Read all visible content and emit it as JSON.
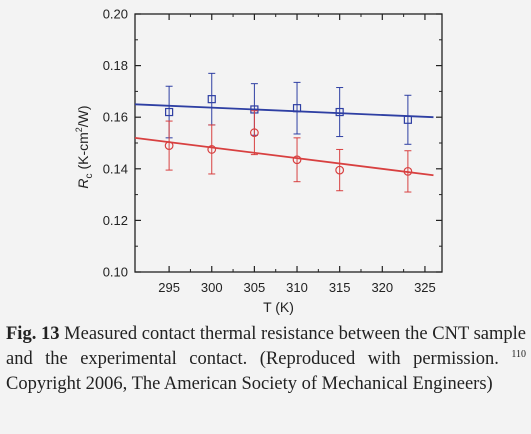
{
  "chart_data": {
    "type": "scatter",
    "xlabel": "T (K)",
    "ylabel_main": "R",
    "ylabel_sub": "c",
    "ylabel_unit": " (K-cm",
    "ylabel_sup": "2",
    "ylabel_tail": "/W)",
    "xlim": [
      291,
      327
    ],
    "ylim": [
      0.1,
      0.2
    ],
    "xticks": [
      295,
      300,
      305,
      310,
      315,
      320,
      325
    ],
    "yticks": [
      "0.10",
      "0.12",
      "0.14",
      "0.16",
      "0.18",
      "0.20"
    ],
    "grid": false,
    "series": [
      {
        "marker": "square",
        "color": "#2e3fa3",
        "x": [
          295,
          300,
          305,
          310,
          315,
          323
        ],
        "y": [
          0.162,
          0.167,
          0.163,
          0.1635,
          0.162,
          0.159
        ],
        "err": [
          0.01,
          0.01,
          0.01,
          0.01,
          0.0095,
          0.0095
        ],
        "fit": [
          [
            291,
            0.165
          ],
          [
            326,
            0.16
          ]
        ]
      },
      {
        "marker": "circle",
        "color": "#d84040",
        "x": [
          295,
          300,
          305,
          310,
          315,
          323
        ],
        "y": [
          0.149,
          0.1475,
          0.154,
          0.1435,
          0.1395,
          0.139
        ],
        "err": [
          0.0095,
          0.0095,
          0.0085,
          0.0085,
          0.008,
          0.008
        ],
        "fit": [
          [
            291,
            0.152
          ],
          [
            326,
            0.1375
          ]
        ]
      }
    ]
  },
  "caption": {
    "fig_label": "Fig. 13",
    "text_before_ref": " Measured contact thermal resistance between the CNT sample and the experimental contact. (Reproduced with permission.",
    "ref": "110",
    "text_after_ref": " Copyright 2006, The American Society of Mechanical Engineers)"
  }
}
